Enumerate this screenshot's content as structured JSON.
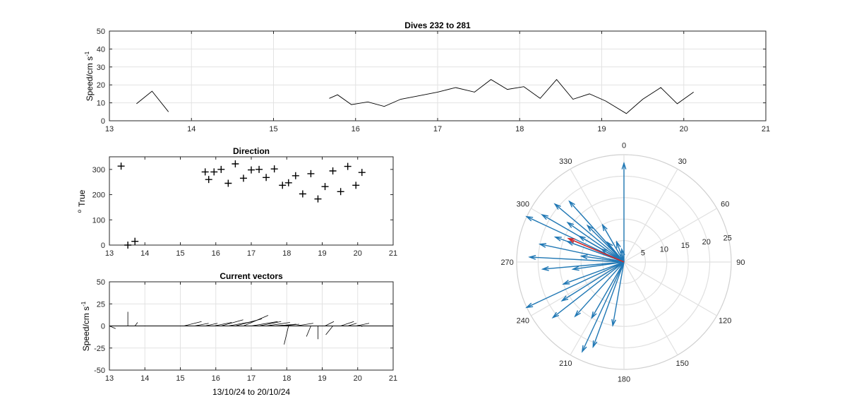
{
  "chart_data": [
    {
      "type": "line",
      "title": "Dives 232 to 281",
      "xlabel": "",
      "ylabel": "Speed/cm s",
      "ylabel_sup": "-1",
      "xlim": [
        13,
        21
      ],
      "ylim": [
        0,
        50
      ],
      "xticks": [
        "13",
        "14",
        "15",
        "16",
        "17",
        "18",
        "19",
        "20",
        "21"
      ],
      "yticks": [
        "0",
        "10",
        "20",
        "30",
        "40",
        "50"
      ],
      "grid": true,
      "segments": [
        [
          [
            13.33,
            9.5
          ],
          [
            13.52,
            16.5
          ],
          [
            13.72,
            5.0
          ]
        ],
        [
          [
            15.68,
            12.5
          ],
          [
            15.78,
            14.5
          ],
          [
            15.95,
            9.0
          ],
          [
            16.15,
            10.5
          ],
          [
            16.35,
            8.0
          ],
          [
            16.55,
            12.0
          ],
          [
            16.78,
            14.0
          ],
          [
            17.0,
            16.0
          ],
          [
            17.22,
            18.5
          ],
          [
            17.45,
            16.0
          ],
          [
            17.65,
            23.0
          ],
          [
            17.85,
            17.5
          ],
          [
            18.05,
            19.0
          ],
          [
            18.25,
            12.5
          ],
          [
            18.45,
            23.0
          ],
          [
            18.65,
            12.0
          ],
          [
            18.85,
            15.0
          ],
          [
            19.05,
            11.0
          ],
          [
            19.3,
            4.0
          ],
          [
            19.5,
            12.0
          ],
          [
            19.72,
            18.5
          ],
          [
            19.92,
            9.5
          ],
          [
            20.12,
            16.0
          ]
        ]
      ]
    },
    {
      "type": "scatter",
      "title": "Direction",
      "xlabel": "",
      "ylabel": "True",
      "ylabel_sup": "o",
      "xlim": [
        13,
        21
      ],
      "ylim": [
        0,
        350
      ],
      "xticks": [
        "13",
        "14",
        "15",
        "16",
        "17",
        "18",
        "19",
        "20",
        "21"
      ],
      "yticks": [
        "0",
        "100",
        "200",
        "300"
      ],
      "grid": false,
      "marker": "+",
      "points": [
        [
          13.33,
          313
        ],
        [
          13.52,
          0
        ],
        [
          13.72,
          15
        ],
        [
          15.7,
          290
        ],
        [
          15.8,
          260
        ],
        [
          15.95,
          290
        ],
        [
          16.15,
          300
        ],
        [
          16.35,
          245
        ],
        [
          16.55,
          322
        ],
        [
          16.78,
          265
        ],
        [
          17.0,
          298
        ],
        [
          17.22,
          300
        ],
        [
          17.42,
          268
        ],
        [
          17.65,
          302
        ],
        [
          17.88,
          237
        ],
        [
          18.05,
          247
        ],
        [
          18.25,
          275
        ],
        [
          18.45,
          203
        ],
        [
          18.68,
          283
        ],
        [
          18.88,
          183
        ],
        [
          19.08,
          232
        ],
        [
          19.3,
          294
        ],
        [
          19.52,
          212
        ],
        [
          19.72,
          312
        ],
        [
          19.95,
          237
        ],
        [
          20.12,
          288
        ]
      ]
    },
    {
      "type": "line",
      "title": "Current vectors",
      "xlabel": "13/10/24 to 20/10/24",
      "ylabel": "Speed/cm s",
      "ylabel_sup": "-1",
      "xlim": [
        13,
        21
      ],
      "ylim": [
        -50,
        50
      ],
      "xticks": [
        "13",
        "14",
        "15",
        "16",
        "17",
        "18",
        "19",
        "20",
        "21"
      ],
      "yticks": [
        "-50",
        "-25",
        "0",
        "25",
        "50"
      ],
      "grid": true,
      "vectors": [
        [
          13.0,
          7,
          -3
        ],
        [
          13.52,
          0,
          16
        ],
        [
          13.72,
          3,
          4
        ],
        [
          15.1,
          20,
          5
        ],
        [
          15.4,
          16,
          3
        ],
        [
          15.7,
          14,
          3
        ],
        [
          15.95,
          20,
          4
        ],
        [
          16.15,
          25,
          7
        ],
        [
          16.35,
          28,
          5
        ],
        [
          16.55,
          30,
          8
        ],
        [
          16.78,
          28,
          12
        ],
        [
          17.0,
          30,
          5
        ],
        [
          17.22,
          25,
          5
        ],
        [
          17.42,
          27,
          4
        ],
        [
          17.65,
          25,
          2
        ],
        [
          17.9,
          18,
          2
        ],
        [
          18.05,
          -5,
          -21
        ],
        [
          18.25,
          20,
          3
        ],
        [
          18.45,
          25,
          0
        ],
        [
          18.68,
          -5,
          -12
        ],
        [
          18.88,
          0,
          -15
        ],
        [
          19.08,
          10,
          5
        ],
        [
          19.3,
          -8,
          -10
        ],
        [
          19.52,
          15,
          5
        ],
        [
          19.72,
          10,
          3
        ],
        [
          19.95,
          15,
          3
        ],
        [
          20.12,
          0,
          -1
        ]
      ]
    },
    {
      "type": "polar",
      "title": "",
      "rlim": [
        0,
        25
      ],
      "rticks": [
        "5",
        "10",
        "15",
        "20",
        "25"
      ],
      "angle_labels": [
        "0",
        "30",
        "60",
        "90",
        "120",
        "150",
        "180",
        "210",
        "240",
        "270",
        "300",
        "330"
      ],
      "grid": true,
      "colors": {
        "vectors": "#1f77b4",
        "mean": "#d62728"
      },
      "vectors": [
        [
          0,
          23
        ],
        [
          305,
          16
        ],
        [
          300,
          22
        ],
        [
          295,
          25
        ],
        [
          315,
          12
        ],
        [
          330,
          10
        ],
        [
          318,
          19
        ],
        [
          310,
          21
        ],
        [
          290,
          14
        ],
        [
          282,
          20
        ],
        [
          265,
          19
        ],
        [
          273,
          22
        ],
        [
          300,
          6
        ],
        [
          278,
          10
        ],
        [
          262,
          12
        ],
        [
          250,
          15
        ],
        [
          245,
          25
        ],
        [
          232,
          21
        ],
        [
          238,
          17
        ],
        [
          222,
          17
        ],
        [
          210,
          15
        ],
        [
          205,
          23
        ],
        [
          190,
          15
        ],
        [
          200,
          21
        ],
        [
          290,
          17
        ],
        [
          300,
          12
        ],
        [
          320,
          6
        ],
        [
          350,
          3
        ],
        [
          340,
          5
        ]
      ],
      "mean_vector": [
        293,
        14
      ]
    }
  ]
}
